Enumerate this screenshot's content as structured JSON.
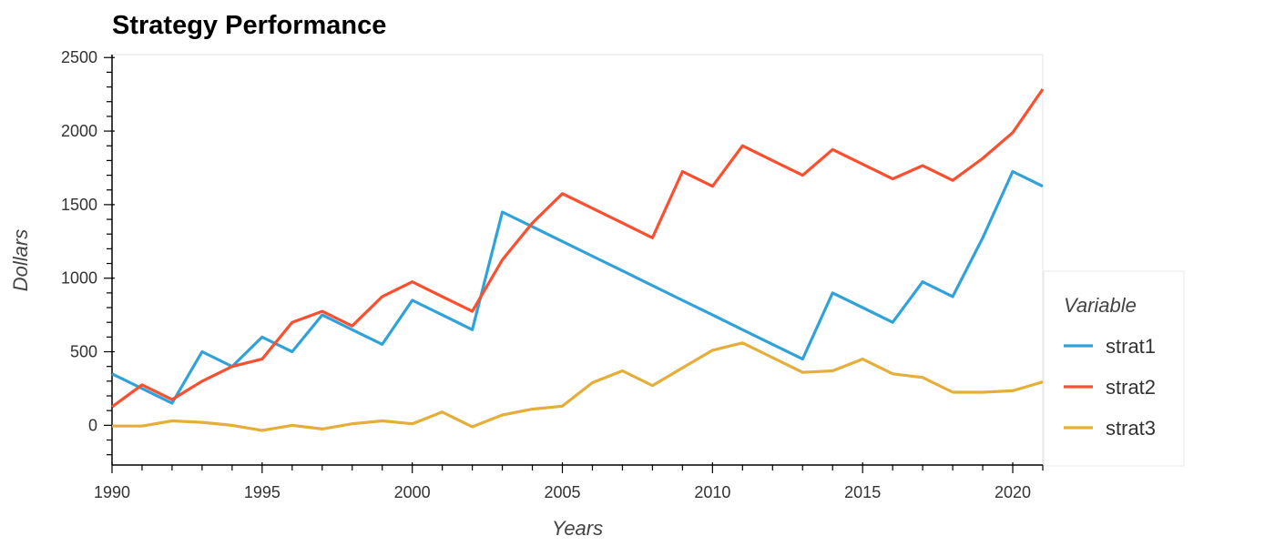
{
  "chart_data": {
    "type": "line",
    "title": "Strategy Performance",
    "xlabel": "Years",
    "ylabel": "Dollars",
    "xlim": [
      1990,
      2021
    ],
    "ylim": [
      -270,
      2520
    ],
    "x_ticks": [
      1990,
      1995,
      2000,
      2005,
      2010,
      2015,
      2020
    ],
    "y_ticks": [
      0,
      500,
      1000,
      1500,
      2000,
      2500
    ],
    "grid": false,
    "legend": {
      "title": "Variable",
      "placement": "right"
    },
    "x": [
      1990,
      1991,
      1992,
      1993,
      1994,
      1995,
      1996,
      1997,
      1998,
      1999,
      2000,
      2001,
      2002,
      2003,
      2004,
      2005,
      2006,
      2007,
      2008,
      2009,
      2010,
      2011,
      2012,
      2013,
      2014,
      2015,
      2016,
      2017,
      2018,
      2019,
      2020,
      2021
    ],
    "series": [
      {
        "name": "strat1",
        "color": "#30a2da",
        "values": [
          350,
          250,
          150,
          500,
          400,
          600,
          500,
          750,
          650,
          550,
          850,
          750,
          650,
          1450,
          1350,
          1250,
          1150,
          1050,
          950,
          850,
          750,
          650,
          550,
          450,
          900,
          800,
          700,
          975,
          875,
          1275,
          1725,
          1625
        ]
      },
      {
        "name": "strat2",
        "color": "#fc4f30",
        "values": [
          125,
          275,
          175,
          300,
          400,
          450,
          700,
          775,
          675,
          875,
          975,
          875,
          775,
          1125,
          1375,
          1575,
          1475,
          1375,
          1275,
          1725,
          1625,
          1900,
          1800,
          1700,
          1875,
          1775,
          1675,
          1765,
          1665,
          1815,
          1990,
          2285
        ]
      },
      {
        "name": "strat3",
        "color": "#e5ae38",
        "values": [
          -5,
          -5,
          30,
          20,
          0,
          -35,
          0,
          -25,
          10,
          30,
          10,
          90,
          -10,
          70,
          110,
          130,
          290,
          370,
          270,
          390,
          510,
          560,
          460,
          360,
          370,
          450,
          350,
          325,
          225,
          225,
          235,
          295
        ]
      }
    ]
  }
}
